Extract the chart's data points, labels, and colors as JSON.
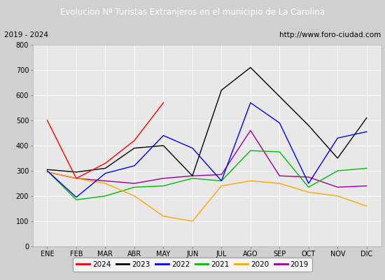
{
  "title": "Evolucion Nº Turistas Extranjeros en el municipio de La Carolina",
  "subtitle_left": "2019 - 2024",
  "subtitle_right": "http://www.foro-ciudad.com",
  "months": [
    "ENE",
    "FEB",
    "MAR",
    "ABR",
    "MAY",
    "JUN",
    "JUL",
    "AGO",
    "SEP",
    "OCT",
    "NOV",
    "DIC"
  ],
  "series": {
    "2024": [
      500,
      270,
      330,
      420,
      570,
      null,
      null,
      null,
      null,
      null,
      null,
      null
    ],
    "2023": [
      305,
      295,
      310,
      390,
      400,
      280,
      620,
      710,
      595,
      480,
      350,
      510
    ],
    "2022": [
      300,
      195,
      290,
      320,
      440,
      390,
      260,
      570,
      490,
      250,
      430,
      455
    ],
    "2021": [
      300,
      185,
      200,
      235,
      240,
      270,
      260,
      380,
      375,
      235,
      300,
      310
    ],
    "2020": [
      295,
      270,
      250,
      200,
      120,
      100,
      240,
      260,
      250,
      215,
      200,
      160
    ],
    "2019": [
      295,
      270,
      260,
      250,
      270,
      280,
      285,
      460,
      280,
      275,
      235,
      240
    ]
  },
  "colors": {
    "2024": "#ff0000",
    "2023": "#000000",
    "2022": "#0000ff",
    "2021": "#00bb00",
    "2020": "#ffa500",
    "2019": "#990099"
  },
  "ylim": [
    0,
    800
  ],
  "yticks": [
    0,
    100,
    200,
    300,
    400,
    500,
    600,
    700,
    800
  ],
  "title_bg": "#4472c4",
  "title_color": "#ffffff",
  "subtitle_bg": "#e0e0e0",
  "plot_bg": "#e8e8e8",
  "grid_color": "#ffffff",
  "title_fontsize": 8.5,
  "subtitle_fontsize": 7.5,
  "tick_fontsize": 7,
  "legend_fontsize": 7.5
}
